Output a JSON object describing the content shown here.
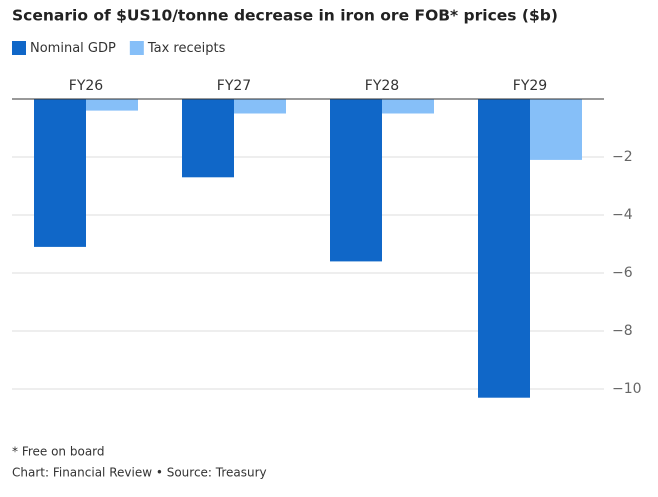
{
  "chart_data": {
    "type": "bar",
    "title": "Scenario of $US10/tonne decrease in iron ore FOB* prices ($b)",
    "categories": [
      "FY26",
      "FY27",
      "FY28",
      "FY29"
    ],
    "series": [
      {
        "name": "Nominal GDP",
        "color": "#1067c8",
        "values": [
          -5.1,
          -2.7,
          -5.6,
          -10.3
        ]
      },
      {
        "name": "Tax receipts",
        "color": "#86bff8",
        "values": [
          -0.4,
          -0.5,
          -0.5,
          -2.1
        ]
      }
    ],
    "ylim": [
      -10.5,
      0
    ],
    "yticks": [
      {
        "value": -2,
        "label": "−2"
      },
      {
        "value": -4,
        "label": "−4"
      },
      {
        "value": -6,
        "label": "−6"
      },
      {
        "value": -8,
        "label": "−8"
      },
      {
        "value": -10,
        "label": "−10"
      }
    ],
    "grid": true,
    "footnote": "* Free on board",
    "source": "Chart: Financial Review • Source: Treasury"
  }
}
